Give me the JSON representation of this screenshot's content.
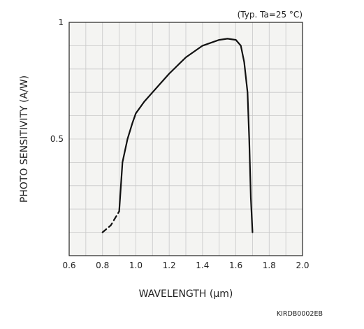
{
  "chart_data": {
    "type": "line",
    "title": "",
    "annotation": "(Typ. Ta=25 °C)",
    "xlabel": "WAVELENGTH (μm)",
    "ylabel": "PHOTO SENSITIVITY (A/W)",
    "doc_id": "KIRDB0002EB",
    "xlim": [
      0.6,
      2.0
    ],
    "ylim": [
      0,
      1
    ],
    "x_ticks": [
      0.6,
      0.8,
      1.0,
      1.2,
      1.4,
      1.6,
      1.8,
      2.0
    ],
    "x_tick_labels": [
      "0.6",
      "0.8",
      "1.0",
      "1.2",
      "1.4",
      "1.6",
      "1.8",
      "2.0"
    ],
    "y_ticks": [
      0.5,
      1
    ],
    "y_tick_labels": [
      "0.5",
      "1"
    ],
    "grid": true,
    "colors": {
      "plot_background": "#f4f4f2",
      "grid": "#c8c8c8",
      "frame": "#222222",
      "line": "#111111"
    },
    "series": [
      {
        "style": "dashed",
        "x": [
          0.8,
          0.85,
          0.9
        ],
        "y": [
          0.1,
          0.13,
          0.19
        ]
      },
      {
        "style": "solid",
        "x": [
          0.9,
          0.92,
          0.95,
          0.98,
          1.0,
          1.05,
          1.1,
          1.2,
          1.3,
          1.4,
          1.5,
          1.55,
          1.6,
          1.63,
          1.65,
          1.67,
          1.68,
          1.69,
          1.7
        ],
        "y": [
          0.19,
          0.4,
          0.5,
          0.57,
          0.61,
          0.66,
          0.7,
          0.78,
          0.85,
          0.9,
          0.925,
          0.93,
          0.925,
          0.9,
          0.83,
          0.7,
          0.5,
          0.25,
          0.1
        ]
      }
    ]
  }
}
